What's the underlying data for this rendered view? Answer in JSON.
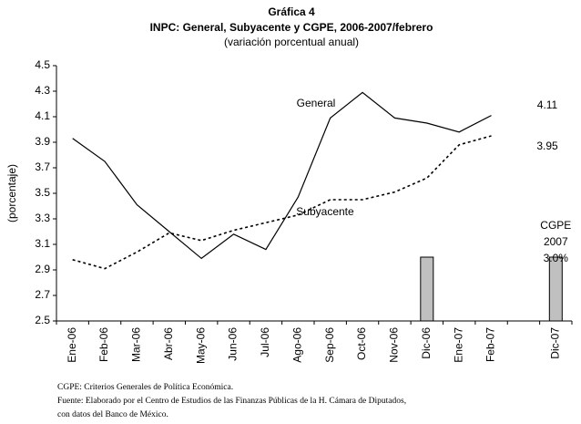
{
  "chart_data": {
    "type": "line",
    "title": "Gráfica 4",
    "subtitle": "INPC: General, Subyacente y CGPE, 2006-2007/febrero",
    "subtitle2": "(variación porcentual anual)",
    "y_label": "(porcentaje)",
    "categories": [
      "Ene-06",
      "Feb-06",
      "Mar-06",
      "Abr-06",
      "May-06",
      "Jun-06",
      "Jul-06",
      "Ago-06",
      "Sep-06",
      "Oct-06",
      "Nov-06",
      "Dic-06",
      "Ene-07",
      "Feb-07",
      null,
      "Dic-07"
    ],
    "series": [
      {
        "name": "General",
        "type": "line",
        "color": "#000000",
        "dash": false,
        "values": [
          3.93,
          3.75,
          3.41,
          3.2,
          2.99,
          3.18,
          3.06,
          3.47,
          4.09,
          4.29,
          4.09,
          4.05,
          3.98,
          4.11,
          null,
          null
        ]
      },
      {
        "name": "Subyacente",
        "type": "line",
        "color": "#000000",
        "dash": true,
        "values": [
          2.98,
          2.91,
          3.04,
          3.19,
          3.13,
          3.21,
          3.27,
          3.33,
          3.45,
          3.45,
          3.51,
          3.62,
          3.88,
          3.95,
          null,
          null
        ]
      },
      {
        "name": "CGPE",
        "type": "bar",
        "color": "#c0c0c0",
        "values": [
          null,
          null,
          null,
          null,
          null,
          null,
          null,
          null,
          null,
          null,
          null,
          3.0,
          null,
          null,
          null,
          3.0
        ],
        "value_labels": [
          null,
          null,
          null,
          null,
          null,
          null,
          null,
          null,
          null,
          null,
          null,
          null,
          null,
          null,
          null,
          "3.0%"
        ]
      }
    ],
    "annotation": "2007",
    "ylim": [
      2.5,
      4.5
    ],
    "yticks": [
      2.5,
      2.7,
      2.9,
      3.1,
      3.3,
      3.5,
      3.7,
      3.9,
      4.1,
      4.3,
      4.5
    ],
    "grid": false,
    "notes": [
      "CGPE: Criterios Generales de Política Económica.",
      "Fuente: Elaborado por el Centro de Estudios de las Finanzas Públicas de la H. Cámara de Diputados,",
      "con  datos del Banco de México."
    ]
  }
}
